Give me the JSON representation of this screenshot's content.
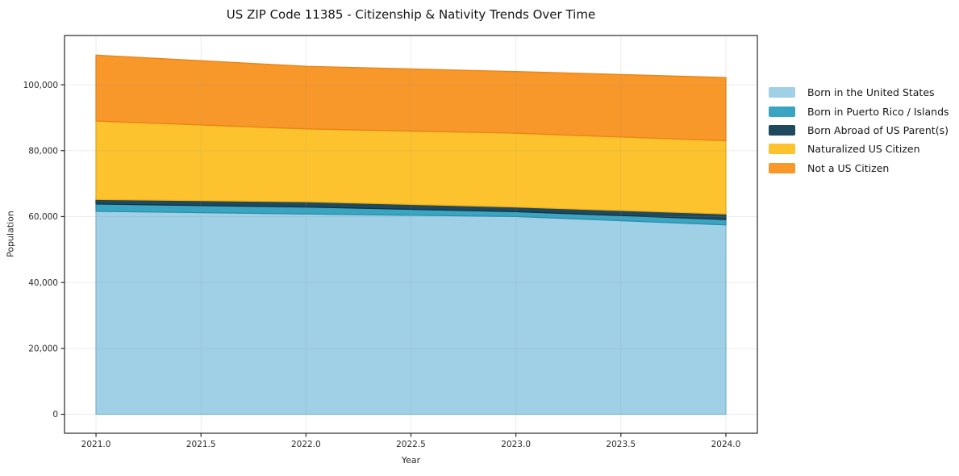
{
  "chart_data": {
    "type": "area",
    "stacked": true,
    "title": "US ZIP Code 11385 - Citizenship & Nativity Trends Over Time",
    "xlabel": "Year",
    "ylabel": "Population",
    "x": [
      2021,
      2022,
      2023,
      2024
    ],
    "series": [
      {
        "name": "Born in the United States",
        "color": "#9fd0e6",
        "edge": "#7cbcda",
        "values": [
          61600,
          60800,
          60000,
          57500
        ]
      },
      {
        "name": "Born in Puerto Rico / Islands",
        "color": "#3aa5c1",
        "edge": "#2b8dab",
        "values": [
          2200,
          2100,
          1500,
          1600
        ]
      },
      {
        "name": "Born Abroad of US Parent(s)",
        "color": "#1f4a5e",
        "edge": "#143243",
        "values": [
          1400,
          1600,
          1400,
          1700
        ]
      },
      {
        "name": "Naturalized US Citizen",
        "color": "#fdc32e",
        "edge": "#efaf14",
        "values": [
          23800,
          22100,
          22400,
          22200
        ]
      },
      {
        "name": "Not a US Citizen",
        "color": "#f8982a",
        "edge": "#e88414",
        "values": [
          20000,
          19000,
          18700,
          19200
        ]
      }
    ],
    "xticks": {
      "values": [
        2021.0,
        2021.5,
        2022.0,
        2022.5,
        2023.0,
        2023.5,
        2024.0
      ],
      "labels": [
        "2021.0",
        "2021.5",
        "2022.0",
        "2022.5",
        "2023.0",
        "2023.5",
        "2024.0"
      ]
    },
    "yticks": {
      "values": [
        0,
        20000,
        40000,
        60000,
        80000,
        100000
      ],
      "labels": [
        "0",
        "20,000",
        "40,000",
        "60,000",
        "80,000",
        "100,000"
      ]
    },
    "xlim": [
      2020.85,
      2024.15
    ],
    "ylim": [
      -5750,
      114950
    ],
    "grid": true,
    "grid_color": "#8c8c8c",
    "frame_color": "#2a2a2a",
    "background": "#ffffff",
    "legend_position": "right-outside"
  }
}
